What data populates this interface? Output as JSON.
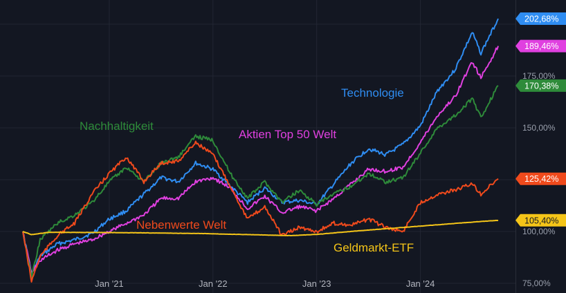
{
  "chart_data": {
    "type": "line",
    "ylim": [
      75,
      210
    ],
    "y_ticks": [
      {
        "value": 75,
        "label": "75,00%"
      },
      {
        "value": 100,
        "label": "100,00%"
      },
      {
        "value": 150,
        "label": "150,00%"
      },
      {
        "value": 175,
        "label": "175,00%"
      }
    ],
    "x_start": "2020-03",
    "x_end": "2024-10",
    "x_ticks": [
      {
        "date": "2021-01",
        "label": "Jan '21"
      },
      {
        "date": "2022-01",
        "label": "Jan '22"
      },
      {
        "date": "2023-01",
        "label": "Jan '23"
      },
      {
        "date": "2024-01",
        "label": "Jan '24"
      }
    ],
    "grid": true,
    "series": [
      {
        "name": "Technologie",
        "color": "#2f8df2",
        "end_label": "202,68%",
        "points": [
          [
            "2020-03",
            100
          ],
          [
            "2020-04",
            80
          ],
          [
            "2020-05",
            88
          ],
          [
            "2020-07",
            94
          ],
          [
            "2020-09",
            96
          ],
          [
            "2020-11",
            99
          ],
          [
            "2021-01",
            106
          ],
          [
            "2021-03",
            110
          ],
          [
            "2021-05",
            118
          ],
          [
            "2021-07",
            126
          ],
          [
            "2021-09",
            124
          ],
          [
            "2021-11",
            133
          ],
          [
            "2022-01",
            130
          ],
          [
            "2022-03",
            122
          ],
          [
            "2022-05",
            114
          ],
          [
            "2022-07",
            121
          ],
          [
            "2022-09",
            114
          ],
          [
            "2022-11",
            115
          ],
          [
            "2023-01",
            113
          ],
          [
            "2023-03",
            123
          ],
          [
            "2023-05",
            133
          ],
          [
            "2023-07",
            140
          ],
          [
            "2023-09",
            137
          ],
          [
            "2023-11",
            142
          ],
          [
            "2024-01",
            151
          ],
          [
            "2024-03",
            168
          ],
          [
            "2024-05",
            178
          ],
          [
            "2024-07",
            196
          ],
          [
            "2024-08",
            186
          ],
          [
            "2024-10",
            202.68
          ]
        ]
      },
      {
        "name": "Aktien Top 50 Welt",
        "color": "#e040e0",
        "end_label": "189,46%",
        "points": [
          [
            "2020-03",
            100
          ],
          [
            "2020-04",
            80
          ],
          [
            "2020-05",
            86
          ],
          [
            "2020-07",
            91
          ],
          [
            "2020-09",
            94
          ],
          [
            "2020-11",
            96
          ],
          [
            "2021-01",
            100
          ],
          [
            "2021-03",
            104
          ],
          [
            "2021-05",
            108
          ],
          [
            "2021-07",
            116
          ],
          [
            "2021-09",
            116
          ],
          [
            "2021-11",
            124
          ],
          [
            "2022-01",
            126
          ],
          [
            "2022-03",
            121
          ],
          [
            "2022-05",
            111
          ],
          [
            "2022-07",
            117
          ],
          [
            "2022-09",
            109
          ],
          [
            "2022-11",
            112
          ],
          [
            "2023-01",
            110
          ],
          [
            "2023-03",
            116
          ],
          [
            "2023-05",
            123
          ],
          [
            "2023-07",
            130
          ],
          [
            "2023-09",
            129
          ],
          [
            "2023-11",
            131
          ],
          [
            "2024-01",
            143
          ],
          [
            "2024-03",
            156
          ],
          [
            "2024-05",
            165
          ],
          [
            "2024-07",
            182
          ],
          [
            "2024-08",
            174
          ],
          [
            "2024-10",
            189.46
          ]
        ]
      },
      {
        "name": "Nachhaltigkeit",
        "color": "#2e8b3a",
        "end_label": "170,38%",
        "points": [
          [
            "2020-03",
            100
          ],
          [
            "2020-04",
            78
          ],
          [
            "2020-05",
            96
          ],
          [
            "2020-07",
            104
          ],
          [
            "2020-09",
            108
          ],
          [
            "2020-11",
            114
          ],
          [
            "2021-01",
            124
          ],
          [
            "2021-03",
            131
          ],
          [
            "2021-05",
            124
          ],
          [
            "2021-07",
            133
          ],
          [
            "2021-09",
            136
          ],
          [
            "2021-11",
            146
          ],
          [
            "2022-01",
            144
          ],
          [
            "2022-03",
            128
          ],
          [
            "2022-05",
            116
          ],
          [
            "2022-07",
            124
          ],
          [
            "2022-09",
            114
          ],
          [
            "2022-11",
            120
          ],
          [
            "2023-01",
            113
          ],
          [
            "2023-03",
            118
          ],
          [
            "2023-05",
            122
          ],
          [
            "2023-07",
            128
          ],
          [
            "2023-09",
            124
          ],
          [
            "2023-11",
            126
          ],
          [
            "2024-01",
            138
          ],
          [
            "2024-03",
            150
          ],
          [
            "2024-05",
            156
          ],
          [
            "2024-07",
            164
          ],
          [
            "2024-08",
            155
          ],
          [
            "2024-10",
            170.38
          ]
        ]
      },
      {
        "name": "Nebenwerte Welt",
        "color": "#f04a1c",
        "end_label": "125,42%",
        "points": [
          [
            "2020-03",
            100
          ],
          [
            "2020-04",
            76
          ],
          [
            "2020-05",
            88
          ],
          [
            "2020-07",
            98
          ],
          [
            "2020-09",
            104
          ],
          [
            "2020-11",
            118
          ],
          [
            "2021-01",
            128
          ],
          [
            "2021-03",
            136
          ],
          [
            "2021-05",
            124
          ],
          [
            "2021-07",
            133
          ],
          [
            "2021-09",
            134
          ],
          [
            "2021-11",
            143
          ],
          [
            "2022-01",
            137
          ],
          [
            "2022-03",
            122
          ],
          [
            "2022-05",
            106
          ],
          [
            "2022-07",
            112
          ],
          [
            "2022-09",
            98
          ],
          [
            "2022-11",
            102
          ],
          [
            "2023-01",
            100
          ],
          [
            "2023-03",
            104
          ],
          [
            "2023-05",
            103
          ],
          [
            "2023-07",
            106
          ],
          [
            "2023-09",
            102
          ],
          [
            "2023-11",
            100
          ],
          [
            "2024-01",
            114
          ],
          [
            "2024-03",
            118
          ],
          [
            "2024-05",
            120
          ],
          [
            "2024-07",
            123
          ],
          [
            "2024-08",
            118
          ],
          [
            "2024-10",
            125.42
          ]
        ]
      },
      {
        "name": "Geldmarkt-ETF",
        "color": "#f5c518",
        "end_label": "105,40%",
        "points": [
          [
            "2020-03",
            100
          ],
          [
            "2020-04",
            98.5
          ],
          [
            "2020-06",
            99.6
          ],
          [
            "2020-12",
            99.5
          ],
          [
            "2021-06",
            99.3
          ],
          [
            "2021-12",
            99
          ],
          [
            "2022-06",
            98.4
          ],
          [
            "2022-10",
            98
          ],
          [
            "2023-01",
            98.6
          ],
          [
            "2023-06",
            100.4
          ],
          [
            "2024-01",
            102.6
          ],
          [
            "2024-06",
            104.2
          ],
          [
            "2024-10",
            105.4
          ]
        ]
      }
    ]
  }
}
